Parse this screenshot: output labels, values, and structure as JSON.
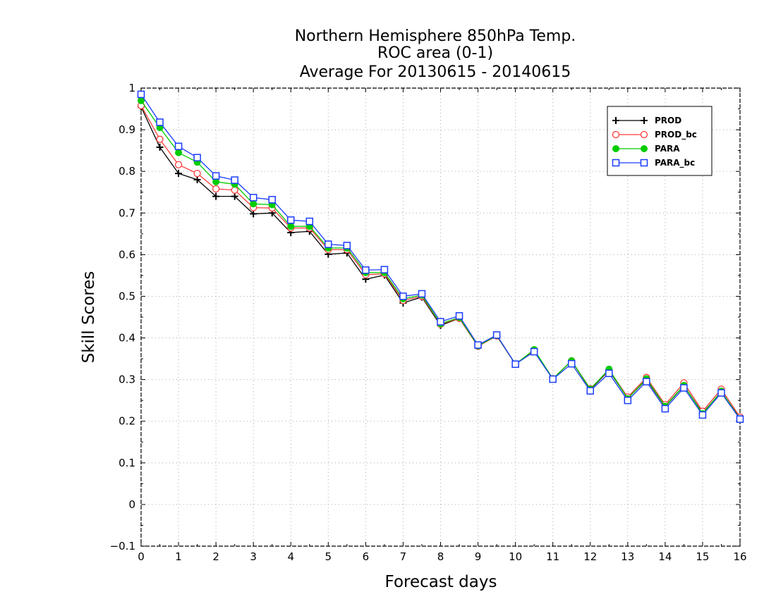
{
  "chart_data": {
    "type": "line",
    "title_lines": [
      "Northern Hemisphere 850hPa Temp.",
      "ROC area (0-1)",
      "Average For 20130615 - 20140615"
    ],
    "xlabel": "Forecast days",
    "ylabel": "Skill Scores",
    "xlim": [
      0,
      16
    ],
    "ylim": [
      -0.1,
      1
    ],
    "xticks": [
      "0",
      "1",
      "2",
      "3",
      "4",
      "5",
      "6",
      "7",
      "8",
      "9",
      "10",
      "11",
      "12",
      "13",
      "14",
      "15",
      "16"
    ],
    "yticks": [
      "−0.1",
      "0",
      "0.1",
      "0.2",
      "0.3",
      "0.4",
      "0.5",
      "0.6",
      "0.7",
      "0.8",
      "0.9",
      "1"
    ],
    "grid": true,
    "legend_position": "top-right",
    "x": [
      0,
      0.5,
      1,
      1.5,
      2,
      2.5,
      3,
      3.5,
      4,
      4.5,
      5,
      5.5,
      6,
      6.5,
      7,
      7.5,
      8,
      8.5,
      9,
      9.5,
      10,
      10.5,
      11,
      11.5,
      12,
      12.5,
      13,
      13.5,
      14,
      14.5,
      15,
      15.5,
      16
    ],
    "series": [
      {
        "name": "PROD",
        "color": "#000000",
        "marker": "plus",
        "values": [
          0.955,
          0.858,
          0.795,
          0.78,
          0.74,
          0.74,
          0.698,
          0.7,
          0.653,
          0.656,
          0.601,
          0.604,
          0.541,
          0.551,
          0.484,
          0.498,
          0.43,
          0.447,
          0.38,
          0.405,
          0.337,
          0.37,
          0.302,
          0.345,
          0.276,
          0.322,
          0.255,
          0.3,
          0.235,
          0.285,
          0.22,
          0.27,
          0.208
        ]
      },
      {
        "name": "PROD_bc",
        "color": "#ff3b3b",
        "marker": "open-circle",
        "values": [
          0.958,
          0.877,
          0.816,
          0.795,
          0.758,
          0.755,
          0.713,
          0.712,
          0.664,
          0.664,
          0.612,
          0.612,
          0.552,
          0.554,
          0.49,
          0.5,
          0.433,
          0.447,
          0.38,
          0.405,
          0.337,
          0.37,
          0.302,
          0.345,
          0.278,
          0.323,
          0.258,
          0.305,
          0.24,
          0.292,
          0.224,
          0.277,
          0.21
        ]
      },
      {
        "name": "PARA",
        "color": "#00cc00",
        "marker": "filled-circle",
        "values": [
          0.97,
          0.905,
          0.845,
          0.822,
          0.775,
          0.769,
          0.722,
          0.72,
          0.668,
          0.668,
          0.616,
          0.616,
          0.557,
          0.557,
          0.494,
          0.503,
          0.434,
          0.449,
          0.381,
          0.406,
          0.337,
          0.372,
          0.302,
          0.345,
          0.277,
          0.325,
          0.254,
          0.302,
          0.236,
          0.286,
          0.218,
          0.272,
          0.206
        ]
      },
      {
        "name": "PARA_bc",
        "color": "#1a3cff",
        "marker": "open-square",
        "values": [
          0.985,
          0.918,
          0.86,
          0.833,
          0.789,
          0.779,
          0.737,
          0.732,
          0.683,
          0.68,
          0.625,
          0.622,
          0.563,
          0.564,
          0.5,
          0.506,
          0.439,
          0.453,
          0.383,
          0.407,
          0.337,
          0.367,
          0.301,
          0.338,
          0.273,
          0.315,
          0.25,
          0.295,
          0.23,
          0.28,
          0.215,
          0.268,
          0.205
        ]
      }
    ]
  }
}
